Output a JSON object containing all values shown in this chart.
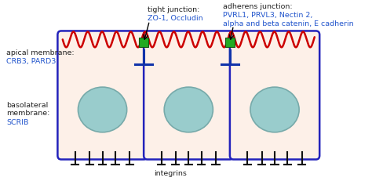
{
  "bg_color": "#ffffff",
  "cell_fill": "#fdf0e8",
  "cell_border_color": "#2222bb",
  "membrane_red_color": "#cc0000",
  "nucleus_fill": "#99cccc",
  "nucleus_edge": "#77aaaa",
  "junction_green": "#22aa22",
  "junction_blue": "#1133aa",
  "integrin_color": "#111111",
  "label_black": "#222222",
  "label_blue": "#2255cc",
  "text_tight_junction": "tight junction:",
  "text_zo1": "ZO-1, Occludin",
  "text_adherens": "adherens junction:",
  "text_adherens2": "PVRL1, PRVL3, Nectin 2,",
  "text_adherens3": "alpha and beta catenin, E cadherin",
  "text_apical": "apical membrane:",
  "text_crb3": "CRB3, PARD3",
  "text_basolateral": "basolateral\nmembrane:",
  "text_scrib": "SCRIB",
  "text_integrins": "integrins",
  "figsize": [
    4.74,
    2.32
  ],
  "dpi": 100
}
